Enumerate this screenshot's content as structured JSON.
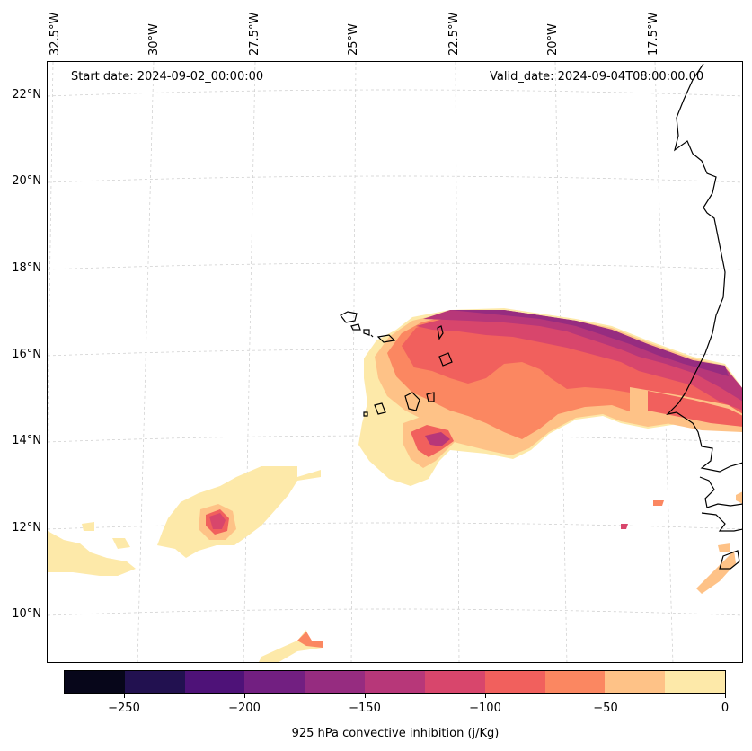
{
  "map": {
    "start_date": "Start date: 2024-09-02_00:00:00",
    "valid_date": "Valid_date: 2024-09-04T08:00:00.00",
    "lon_labels": [
      "32.5°W",
      "30°W",
      "27.5°W",
      "25°W",
      "22.5°W",
      "20°W",
      "17.5°W"
    ],
    "lat_labels": [
      "22°N",
      "20°N",
      "18°N",
      "16°N",
      "14°N",
      "12°N",
      "10°N"
    ]
  },
  "colorbar": {
    "title": "925 hPa convective inhibition (j/Kg)",
    "tick_labels": [
      "−250",
      "−200",
      "−150",
      "−100",
      "−50",
      "0"
    ],
    "colors": [
      "#07061a",
      "#221150",
      "#4e1278",
      "#721f81",
      "#962c80",
      "#b73779",
      "#d8466c",
      "#f1605d",
      "#fb8761",
      "#fec287",
      "#fde9a9"
    ]
  },
  "palette": {
    "c_m175": "#962c80",
    "c_m150": "#b73779",
    "c_m125": "#d8466c",
    "c_m100": "#f1605d",
    "c_m75": "#fb8761",
    "c_m50": "#fec287",
    "c_m25": "#fde9a9",
    "coast": "#000000",
    "grid": "#cccccc"
  }
}
